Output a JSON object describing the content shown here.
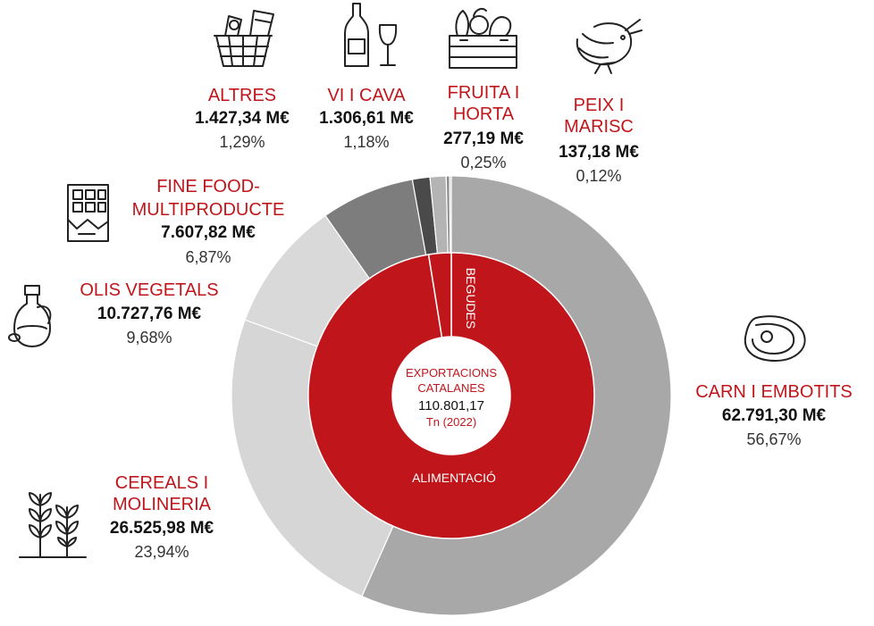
{
  "chart_data": {
    "type": "donut",
    "center": {
      "line1": "EXPORTACIONS",
      "line2": "CATALANES",
      "value": "110.801,17",
      "unit": "Tn (2022)"
    },
    "inner_ring": [
      {
        "label": "ALIMENTACIÓ",
        "share": 97.46,
        "color": "#c0161b"
      },
      {
        "label": "BEGUDES",
        "share": 2.54,
        "color": "#c0161b"
      }
    ],
    "categories": [
      {
        "name": [
          "CARN I EMBOTITS"
        ],
        "value": "62.791,30 M€",
        "pct": "56,67%",
        "share": 56.67,
        "color": "#a8a8a8",
        "icon": "steak-icon"
      },
      {
        "name": [
          "CEREALS I",
          "MOLINERIA"
        ],
        "value": "26.525,98 M€",
        "pct": "23,94%",
        "share": 23.94,
        "color": "#d6d6d6",
        "icon": "wheat-icon"
      },
      {
        "name": [
          "OLIS VEGETALS"
        ],
        "value": "10.727,76 M€",
        "pct": "9,68%",
        "share": 9.68,
        "color": "#d9d9d9",
        "icon": "olive-oil-icon"
      },
      {
        "name": [
          "FINE FOOD-",
          "MULTIPRODUCTE"
        ],
        "value": "7.607,82 M€",
        "pct": "6,87%",
        "share": 6.87,
        "color": "#7d7d7d",
        "icon": "chocolate-bar-icon"
      },
      {
        "name": [
          "ALTRES"
        ],
        "value": "1.427,34 M€",
        "pct": "1,29%",
        "share": 1.29,
        "color": "#4a4a4a",
        "icon": "basket-icon"
      },
      {
        "name": [
          "VI I CAVA"
        ],
        "value": "1.306,61 M€",
        "pct": "1,18%",
        "share": 1.18,
        "color": "#b4b4b4",
        "icon": "wine-icon"
      },
      {
        "name": [
          "FRUITA I",
          "HORTA"
        ],
        "value": "277,19 M€",
        "pct": "0,25%",
        "share": 0.25,
        "color": "#8c8c8c",
        "icon": "vegetable-crate-icon"
      },
      {
        "name": [
          "PEIX I",
          "MARISC"
        ],
        "value": "137,18 M€",
        "pct": "0,12%",
        "share": 0.12,
        "color": "#bdbdbd",
        "icon": "shrimp-icon"
      }
    ]
  }
}
